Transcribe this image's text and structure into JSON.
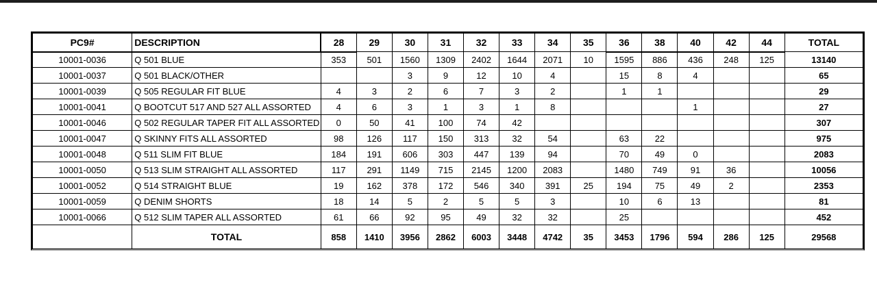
{
  "page": {
    "background_color": "#ffffff",
    "top_bar_color": "#1e1e1e"
  },
  "table": {
    "columns": [
      "PC9#",
      "DESCRIPTION",
      "28",
      "29",
      "30",
      "31",
      "32",
      "33",
      "34",
      "35",
      "36",
      "38",
      "40",
      "42",
      "44",
      "TOTAL"
    ],
    "rows": [
      {
        "pc9": "10001-0036",
        "description": "Q 501 BLUE",
        "sizes": [
          "353",
          "501",
          "1560",
          "1309",
          "2402",
          "1644",
          "2071",
          "10",
          "1595",
          "886",
          "436",
          "248",
          "125"
        ],
        "total": "13140"
      },
      {
        "pc9": "10001-0037",
        "description": "Q 501 BLACK/OTHER",
        "sizes": [
          "",
          "",
          "3",
          "9",
          "12",
          "10",
          "4",
          "",
          "15",
          "8",
          "4",
          "",
          ""
        ],
        "total": "65"
      },
      {
        "pc9": "10001-0039",
        "description": "Q 505 REGULAR FIT BLUE",
        "sizes": [
          "4",
          "3",
          "2",
          "6",
          "7",
          "3",
          "2",
          "",
          "1",
          "1",
          "",
          "",
          ""
        ],
        "total": "29"
      },
      {
        "pc9": "10001-0041",
        "description": "Q BOOTCUT 517 AND 527 ALL ASSORTED",
        "sizes": [
          "4",
          "6",
          "3",
          "1",
          "3",
          "1",
          "8",
          "",
          "",
          "",
          "1",
          "",
          ""
        ],
        "total": "27"
      },
      {
        "pc9": "10001-0046",
        "description": "Q 502 REGULAR TAPER FIT ALL ASSORTED",
        "sizes": [
          "0",
          "50",
          "41",
          "100",
          "74",
          "42",
          "",
          "",
          "",
          "",
          "",
          "",
          ""
        ],
        "total": "307"
      },
      {
        "pc9": "10001-0047",
        "description": "Q SKINNY FITS ALL ASSORTED",
        "sizes": [
          "98",
          "126",
          "117",
          "150",
          "313",
          "32",
          "54",
          "",
          "63",
          "22",
          "",
          "",
          ""
        ],
        "total": "975"
      },
      {
        "pc9": "10001-0048",
        "description": "Q 511 SLIM FIT BLUE",
        "sizes": [
          "184",
          "191",
          "606",
          "303",
          "447",
          "139",
          "94",
          "",
          "70",
          "49",
          "0",
          "",
          ""
        ],
        "total": "2083"
      },
      {
        "pc9": "10001-0050",
        "description": "Q 513 SLIM STRAIGHT ALL ASSORTED",
        "sizes": [
          "117",
          "291",
          "1149",
          "715",
          "2145",
          "1200",
          "2083",
          "",
          "1480",
          "749",
          "91",
          "36",
          ""
        ],
        "total": "10056"
      },
      {
        "pc9": "10001-0052",
        "description": "Q 514 STRAIGHT BLUE",
        "sizes": [
          "19",
          "162",
          "378",
          "172",
          "546",
          "340",
          "391",
          "25",
          "194",
          "75",
          "49",
          "2",
          ""
        ],
        "total": "2353"
      },
      {
        "pc9": "10001-0059",
        "description": "Q DENIM SHORTS",
        "sizes": [
          "18",
          "14",
          "5",
          "2",
          "5",
          "5",
          "3",
          "",
          "10",
          "6",
          "13",
          "",
          ""
        ],
        "total": "81"
      },
      {
        "pc9": "10001-0066",
        "description": "Q 512 SLIM TAPER ALL ASSORTED",
        "sizes": [
          "61",
          "66",
          "92",
          "95",
          "49",
          "32",
          "32",
          "",
          "25",
          "",
          "",
          "",
          ""
        ],
        "total": "452"
      }
    ],
    "total_row": {
      "label": "TOTAL",
      "sizes": [
        "858",
        "1410",
        "3956",
        "2862",
        "6003",
        "3448",
        "4742",
        "35",
        "3453",
        "1796",
        "594",
        "286",
        "125"
      ],
      "total": "29568"
    }
  }
}
